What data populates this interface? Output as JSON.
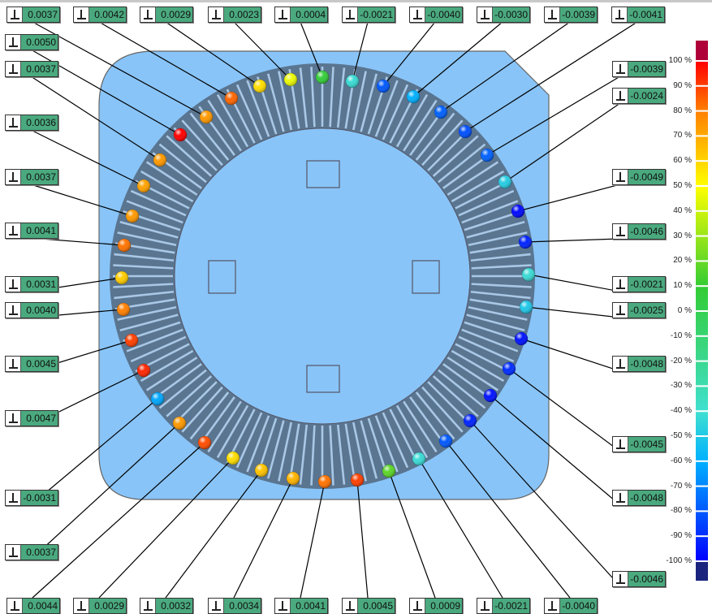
{
  "labels": {
    "top": [
      "0.0037",
      "0.0042",
      "0.0029",
      "0.0023",
      "0.0004",
      "-0.0021",
      "-0.0040",
      "-0.0030",
      "-0.0039",
      "-0.0041"
    ],
    "left": [
      "0.0050",
      "0.0037",
      "0.0036",
      "0.0037",
      "0.0041",
      "0.0031",
      "0.0040",
      "0.0045",
      "0.0047",
      "-0.0031",
      "0.0037"
    ],
    "bottom": [
      "0.0044",
      "0.0029",
      "0.0032",
      "0.0034",
      "0.0041",
      "0.0045",
      "0.0009",
      "-0.0021",
      "-0.0040"
    ],
    "right": [
      "-0.0039",
      "-0.0024",
      "-0.0049",
      "-0.0046",
      "-0.0021",
      "-0.0025",
      "-0.0048",
      "-0.0045",
      "-0.0048",
      "-0.0046"
    ]
  },
  "label_icon": "deviation-gauge-icon",
  "color_scale": {
    "ticks": [
      "100 %",
      "90 %",
      "80 %",
      "70 %",
      "60 %",
      "50 %",
      "40 %",
      "30 %",
      "20 %",
      "10 %",
      "0 %",
      "-10 %",
      "-20 %",
      "-30 %",
      "-40 %",
      "-50 %",
      "-60 %",
      "-70 %",
      "-80 %",
      "-90 %",
      "-100 %"
    ],
    "tolerance": 0.005,
    "over_color": "#b0003a",
    "under_color": "#1a237e",
    "stops": [
      "#ff0000",
      "#ff8000",
      "#ffff00",
      "#33cc33",
      "#40e0d0",
      "#00b0ff",
      "#0000ff"
    ]
  },
  "colors": {
    "plate": "#88c4f8",
    "label": "#4aa97e"
  }
}
